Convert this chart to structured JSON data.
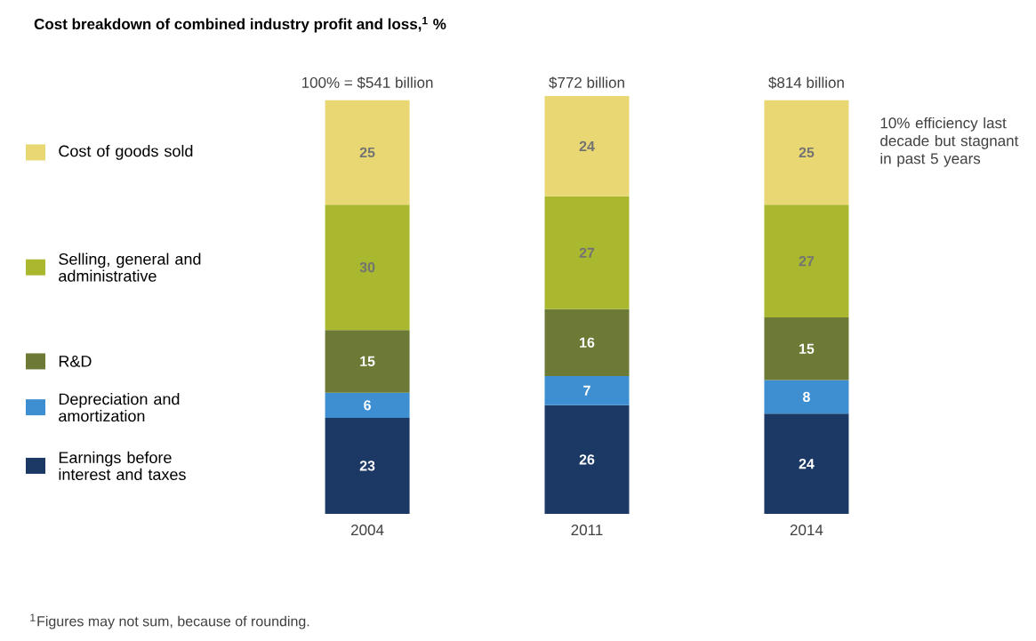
{
  "chart_data": {
    "type": "bar",
    "stacked": true,
    "title": "Cost breakdown of combined industry profit and loss,$^{1}$ %",
    "categories": [
      "2004",
      "2011",
      "2014"
    ],
    "series": [
      {
        "name": "Earnings before interest and taxes",
        "color": "#1c3966",
        "values": [
          23,
          26,
          24
        ]
      },
      {
        "name": "Depreciation and amortization",
        "color": "#3d8fd1",
        "values": [
          6,
          7,
          8
        ]
      },
      {
        "name": "R&D",
        "color": "#6c7a36",
        "values": [
          15,
          16,
          15
        ]
      },
      {
        "name": "Selling, general and administrative",
        "color": "#a9b82f",
        "values": [
          30,
          27,
          27
        ]
      },
      {
        "name": "Cost of goods sold",
        "color": "#e8d772",
        "values": [
          25,
          24,
          25
        ]
      }
    ],
    "ylim": [
      0,
      100
    ],
    "data_labels": true,
    "legend": "left",
    "annotations": [
      {
        "text": "100% = $541 billion",
        "x": "2004",
        "y": 100
      },
      {
        "text": "$772 billion",
        "x": "2011",
        "y": 100
      },
      {
        "text": "$814 billion",
        "x": "2014",
        "y": 100
      },
      "10% efficiency last decade but stagnant in past 5 years",
      "$^{1}$Figures may not sum, because of rounding."
    ]
  }
}
